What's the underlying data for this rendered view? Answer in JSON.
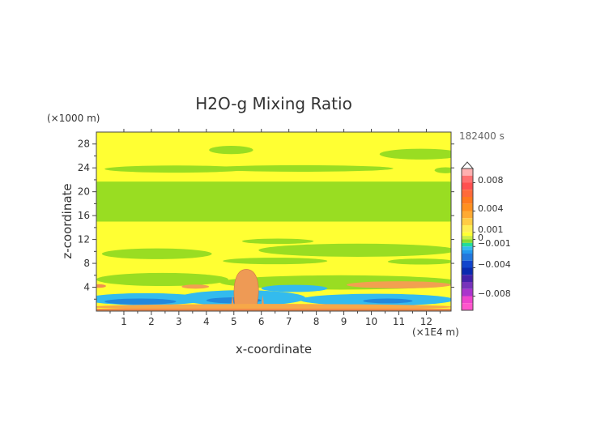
{
  "chart_data": {
    "type": "heatmap",
    "title": "H2O-g Mixing Ratio",
    "xlabel": "x-coordinate",
    "ylabel": "z-coordinate",
    "x_unit": "(×1E4 m)",
    "y_unit": "(×1000 m)",
    "time_label": "182400 s",
    "xlim": [
      0,
      12.9
    ],
    "ylim": [
      0,
      30
    ],
    "x_ticks": [
      "1",
      "2",
      "3",
      "4",
      "5",
      "6",
      "7",
      "8",
      "9",
      "10",
      "11",
      "12"
    ],
    "y_ticks": [
      "4",
      "8",
      "12",
      "16",
      "20",
      "24",
      "28"
    ],
    "colorbar": {
      "labels": [
        "0.008",
        "0.004",
        "0.001",
        "0",
        "−0.001",
        "−0.004",
        "−0.008"
      ],
      "values": [
        0.008,
        0.004,
        0.001,
        0,
        -0.001,
        -0.004,
        -0.008
      ],
      "range": [
        -0.01,
        0.01
      ]
    },
    "background_value": 0.0003,
    "regions": [
      {
        "kind": "band",
        "y0": 21.7,
        "y1": 15.0,
        "value": -0.0003
      },
      {
        "kind": "blob",
        "cx": 2.9,
        "cy": 23.8,
        "rx": 2.6,
        "ry": 0.6,
        "value": -0.0003
      },
      {
        "kind": "blob",
        "cx": 7.4,
        "cy": 23.9,
        "rx": 3.4,
        "ry": 0.55,
        "value": -0.0003
      },
      {
        "kind": "blob",
        "cx": 11.8,
        "cy": 26.3,
        "rx": 1.5,
        "ry": 0.9,
        "value": -0.0003
      },
      {
        "kind": "blob",
        "cx": 4.9,
        "cy": 27.0,
        "rx": 0.8,
        "ry": 0.7,
        "value": -0.0003
      },
      {
        "kind": "blob",
        "cx": 12.7,
        "cy": 23.6,
        "rx": 0.4,
        "ry": 0.5,
        "value": -0.0003
      },
      {
        "kind": "blob",
        "cx": 9.5,
        "cy": 10.2,
        "rx": 3.6,
        "ry": 1.1,
        "value": -0.0003
      },
      {
        "kind": "blob",
        "cx": 2.2,
        "cy": 9.6,
        "rx": 2.0,
        "ry": 0.9,
        "value": -0.0003
      },
      {
        "kind": "blob",
        "cx": 6.6,
        "cy": 11.7,
        "rx": 1.3,
        "ry": 0.45,
        "value": -0.0003
      },
      {
        "kind": "blob",
        "cx": 6.5,
        "cy": 8.4,
        "rx": 1.9,
        "ry": 0.55,
        "value": -0.0003
      },
      {
        "kind": "blob",
        "cx": 11.8,
        "cy": 8.3,
        "rx": 1.2,
        "ry": 0.5,
        "value": -0.0003
      },
      {
        "kind": "blob",
        "cx": 2.4,
        "cy": 5.3,
        "rx": 2.4,
        "ry": 1.1,
        "value": -0.0003
      },
      {
        "kind": "blob",
        "cx": 8.9,
        "cy": 4.8,
        "rx": 4.4,
        "ry": 1.2,
        "value": -0.0003
      },
      {
        "kind": "blob",
        "cx": 1.8,
        "cy": 2.0,
        "rx": 2.2,
        "ry": 1.0,
        "value": -0.0015
      },
      {
        "kind": "blob",
        "cx": 5.3,
        "cy": 2.2,
        "rx": 2.3,
        "ry": 1.3,
        "value": -0.0015
      },
      {
        "kind": "blob",
        "cx": 10.2,
        "cy": 1.9,
        "rx": 2.8,
        "ry": 1.0,
        "value": -0.0015
      },
      {
        "kind": "blob",
        "cx": 7.2,
        "cy": 3.8,
        "rx": 1.2,
        "ry": 0.6,
        "value": -0.0015
      },
      {
        "kind": "blob",
        "cx": 1.6,
        "cy": 1.6,
        "rx": 1.3,
        "ry": 0.5,
        "value": -0.003
      },
      {
        "kind": "blob",
        "cx": 5.0,
        "cy": 1.8,
        "rx": 1.0,
        "ry": 0.5,
        "value": -0.003
      },
      {
        "kind": "blob",
        "cx": 10.6,
        "cy": 1.7,
        "rx": 0.9,
        "ry": 0.4,
        "value": -0.003
      },
      {
        "kind": "plume",
        "cx": 5.45,
        "top": 7.0,
        "bottom": 0.5,
        "halfwidth": 0.4,
        "value": 0.0035
      },
      {
        "kind": "blob",
        "cx": 11.0,
        "cy": 4.4,
        "rx": 1.9,
        "ry": 0.6,
        "value": 0.0025
      },
      {
        "kind": "blob",
        "cx": 3.6,
        "cy": 4.1,
        "rx": 0.5,
        "ry": 0.35,
        "value": 0.0025
      },
      {
        "kind": "blob",
        "cx": 0.1,
        "cy": 4.2,
        "rx": 0.25,
        "ry": 0.3,
        "value": 0.004
      },
      {
        "kind": "blob",
        "cx": 6.4,
        "cy": 0.7,
        "rx": 6.6,
        "ry": 0.5,
        "value": 0.002
      }
    ]
  }
}
